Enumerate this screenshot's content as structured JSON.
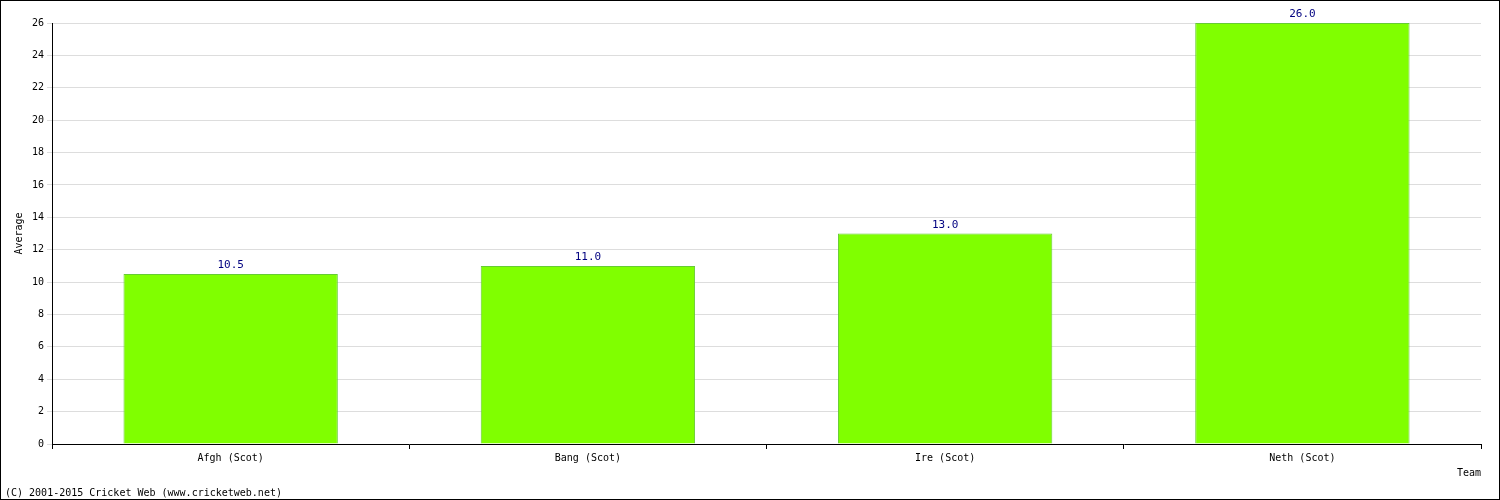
{
  "chart_data": {
    "type": "bar",
    "x_label": "Team",
    "y_label": "Average",
    "annotation": "(C) 2001-2015 Cricket Web (www.cricketweb.net)",
    "categories": [
      "Afgh (Scot)",
      "Bang (Scot)",
      "Ire (Scot)",
      "Neth (Scot)"
    ],
    "values": [
      10.5,
      11,
      13,
      26
    ],
    "value_labels": [
      "10.5",
      "11.0",
      "13.0",
      "26.0"
    ],
    "data_labels": true,
    "color": "#80ff00",
    "ylim": [
      0,
      26
    ],
    "yticks": [
      0,
      2,
      4,
      6,
      8,
      10,
      12,
      14,
      16,
      18,
      20,
      22,
      24,
      26
    ],
    "grid": true
  }
}
